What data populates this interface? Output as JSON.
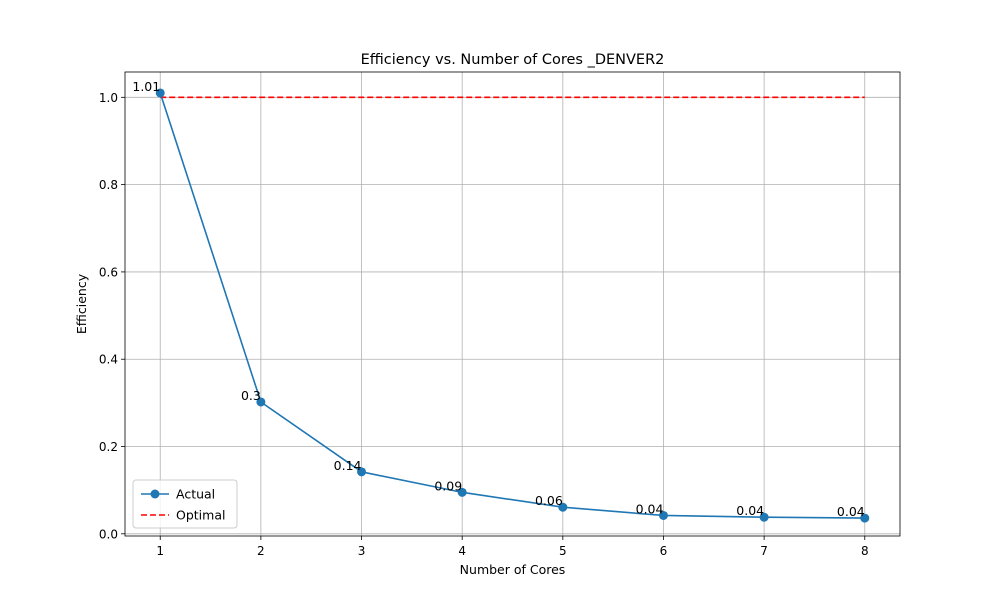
{
  "chart_data": {
    "type": "line",
    "title": "Efficiency vs. Number of Cores _DENVER2",
    "xlabel": "Number of Cores",
    "ylabel": "Efficiency",
    "x": [
      1,
      2,
      3,
      4,
      5,
      6,
      7,
      8
    ],
    "xticks": [
      "1",
      "2",
      "3",
      "4",
      "5",
      "6",
      "7",
      "8"
    ],
    "yticks": [
      "0.0",
      "0.2",
      "0.4",
      "0.6",
      "0.8",
      "1.0"
    ],
    "xlim": [
      0.65,
      8.35
    ],
    "ylim": [
      -0.005,
      1.058
    ],
    "grid": true,
    "legend_position": "lower-left",
    "series": [
      {
        "name": "Actual",
        "style": "solid-with-markers",
        "color": "#1f77b4",
        "values": [
          1.01,
          0.302,
          0.142,
          0.095,
          0.061,
          0.042,
          0.038,
          0.036
        ],
        "labels": [
          "1.01",
          "0.3",
          "0.14",
          "0.09",
          "0.06",
          "0.04",
          "0.04",
          "0.04"
        ]
      },
      {
        "name": "Optimal",
        "style": "dashed",
        "color": "#ff0000",
        "values": [
          1,
          1,
          1,
          1,
          1,
          1,
          1,
          1
        ]
      }
    ]
  }
}
